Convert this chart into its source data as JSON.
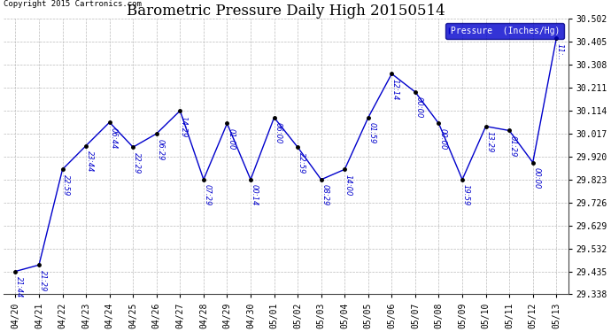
{
  "title": "Barometric Pressure Daily High 20150514",
  "copyright": "Copyright 2015 Cartronics.com",
  "legend_label": "Pressure  (Inches/Hg)",
  "x_labels": [
    "04/20",
    "04/21",
    "04/22",
    "04/23",
    "04/24",
    "04/25",
    "04/26",
    "04/27",
    "04/28",
    "04/29",
    "04/30",
    "05/01",
    "05/02",
    "05/03",
    "05/04",
    "05/05",
    "05/06",
    "05/07",
    "05/08",
    "05/09",
    "05/10",
    "05/11",
    "05/12",
    "05/13"
  ],
  "line_data_x": [
    0,
    1,
    2,
    3,
    4,
    5,
    6,
    7,
    8,
    9,
    10,
    11,
    12,
    13,
    14,
    15,
    16,
    17,
    18,
    19,
    20,
    21,
    22,
    23
  ],
  "line_data_y": [
    29.435,
    29.462,
    29.866,
    29.966,
    30.065,
    29.96,
    30.017,
    30.114,
    29.823,
    30.06,
    29.823,
    30.085,
    29.96,
    29.823,
    29.866,
    30.085,
    30.27,
    30.193,
    30.06,
    29.823,
    30.048,
    30.03,
    29.895,
    30.42
  ],
  "point_labels": [
    "21:44",
    "21:29",
    "22:59",
    "23:44",
    "06:44",
    "22:29",
    "06:29",
    "14:29",
    "07:29",
    "01:00",
    "00:14",
    "06:00",
    "22:59",
    "08:29",
    "14:00",
    "01:59",
    "12:14",
    "00:00",
    "00:00",
    "19:59",
    "13:29",
    "01:29",
    "00:00",
    "11:.."
  ],
  "ylim": [
    29.338,
    30.502
  ],
  "yticks": [
    29.338,
    29.435,
    29.532,
    29.629,
    29.726,
    29.823,
    29.92,
    30.017,
    30.114,
    30.211,
    30.308,
    30.405,
    30.502
  ],
  "line_color": "#0000CC",
  "marker_color": "#000000",
  "grid_color": "#BBBBBB",
  "bg_color": "#FFFFFF",
  "title_fontsize": 12,
  "tick_fontsize": 7,
  "annotation_fontsize": 7,
  "legend_bg": "#0000CC",
  "legend_fg": "#FFFFFF",
  "fig_width": 6.9,
  "fig_height": 3.75,
  "dpi": 100
}
